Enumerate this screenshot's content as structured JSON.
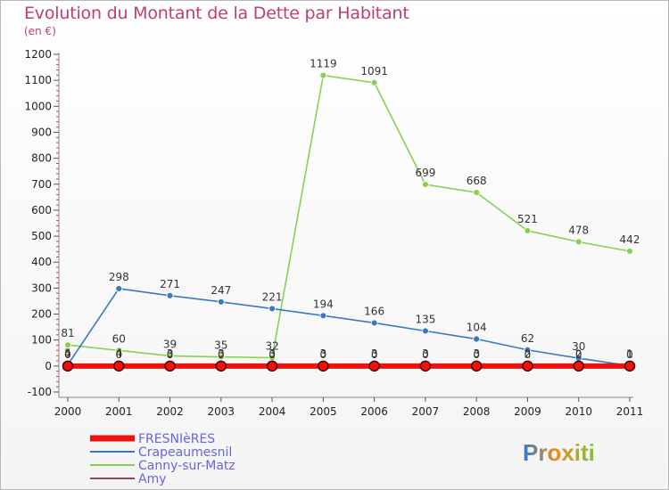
{
  "header": {
    "title": "Evolution du Montant de la Dette par Habitant",
    "subtitle": "(en €)"
  },
  "logo": {
    "text": "Proxiti"
  },
  "chart_data": {
    "type": "line",
    "title": "Evolution du Montant de la Dette par Habitant",
    "ylabel": "(en €)",
    "x": [
      "2000",
      "2001",
      "2002",
      "2003",
      "2004",
      "2005",
      "2006",
      "2007",
      "2008",
      "2009",
      "2010",
      "2011"
    ],
    "ylim": [
      -100,
      1200
    ],
    "yticks": [
      -100,
      0,
      100,
      200,
      300,
      400,
      500,
      600,
      700,
      800,
      900,
      1000,
      1100,
      1200
    ],
    "grid": false,
    "legend_position": "bottom-left",
    "series": [
      {
        "name": "FRESNIèRES",
        "color": "#ee1111",
        "values": [
          0,
          0,
          0,
          0,
          0,
          0,
          0,
          0,
          0,
          0,
          0,
          0
        ]
      },
      {
        "name": "Crapeaumesnil",
        "color": "#3c78c2",
        "values": [
          5,
          298,
          271,
          247,
          221,
          194,
          166,
          135,
          104,
          62,
          30,
          1
        ]
      },
      {
        "name": "Canny-sur-Matz",
        "color": "#88d055",
        "values": [
          81,
          60,
          39,
          35,
          32,
          1119,
          1091,
          699,
          668,
          521,
          478,
          442
        ]
      },
      {
        "name": "Amy",
        "color": "#8b4a5c",
        "values": [
          4,
          4,
          3,
          3,
          3,
          3,
          3,
          3,
          3,
          2,
          2,
          1
        ]
      }
    ]
  }
}
